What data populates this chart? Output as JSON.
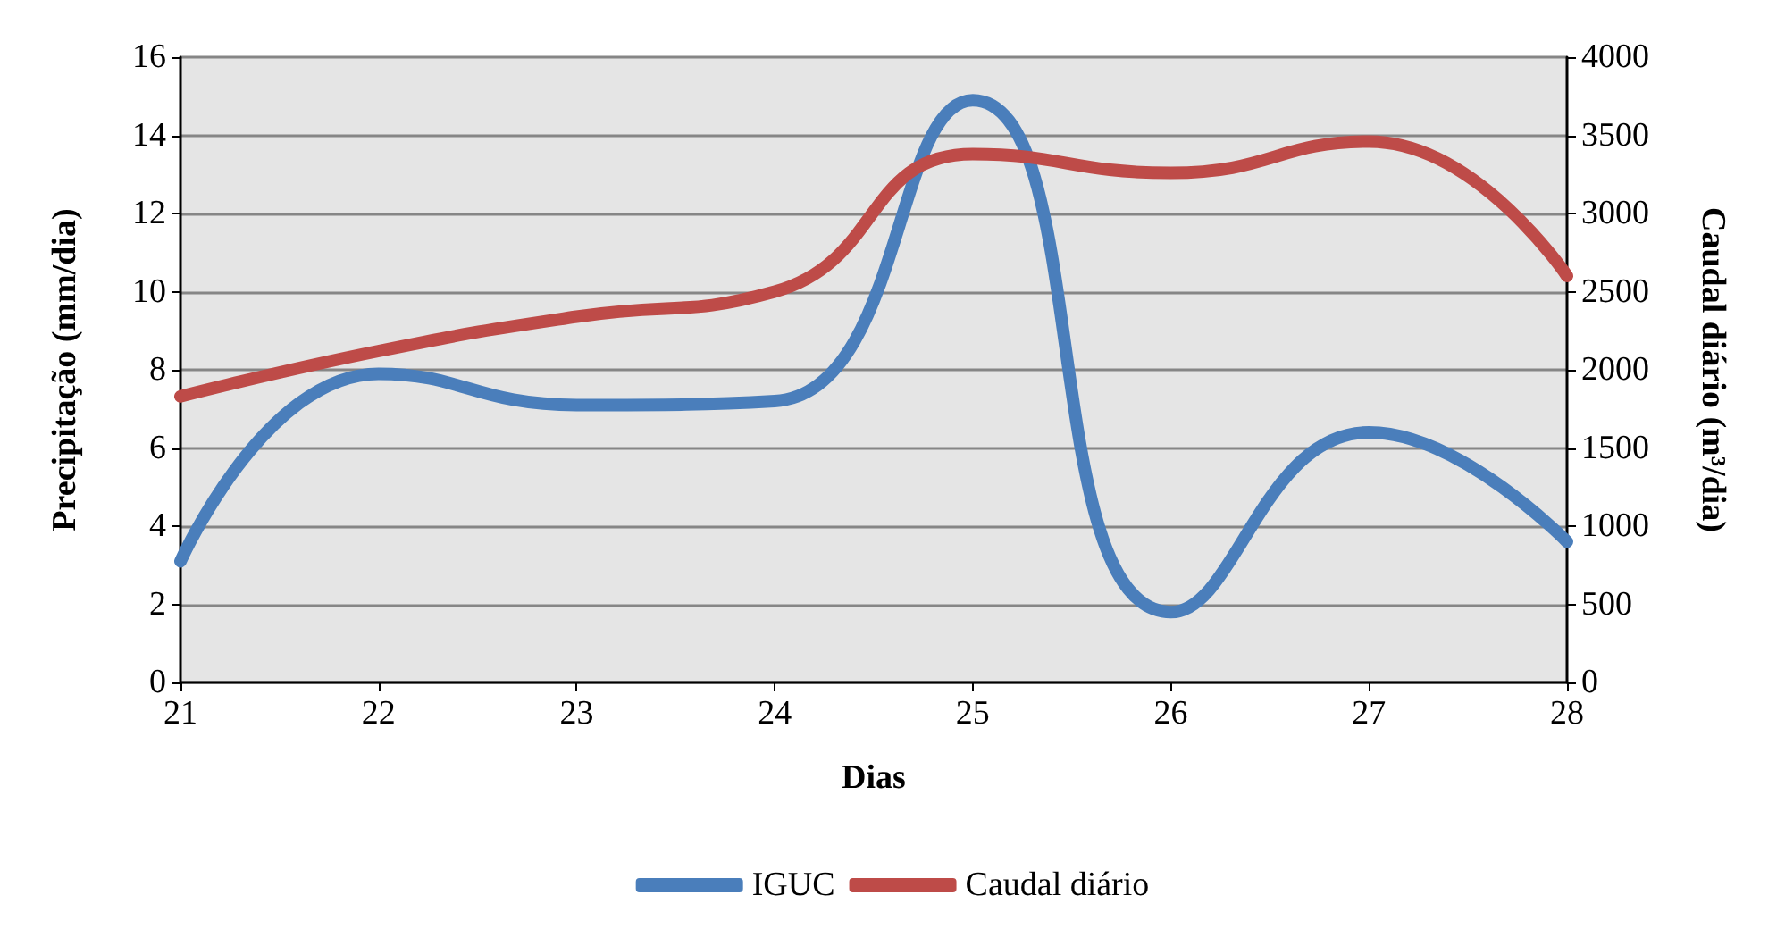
{
  "chart_data": {
    "type": "line",
    "xlabel": "Dias",
    "ylabel": "Precipitação (mm/dia)",
    "y2label": "Caudal diário (m³/dia)",
    "x": [
      21,
      22,
      23,
      24,
      25,
      26,
      27,
      28
    ],
    "xlim": [
      21,
      28
    ],
    "xticks": [
      21,
      22,
      23,
      24,
      25,
      26,
      27,
      28
    ],
    "ylim": [
      0,
      16
    ],
    "yticks": [
      0,
      2,
      4,
      6,
      8,
      10,
      12,
      14,
      16
    ],
    "y2lim": [
      0,
      4000
    ],
    "y2ticks": [
      0,
      500,
      1000,
      1500,
      2000,
      2500,
      3000,
      3500,
      4000
    ],
    "series": [
      {
        "name": "IGUC",
        "color": "#4a7ebb",
        "values": [
          3.1,
          7.9,
          7.1,
          7.2,
          14.9,
          1.8,
          6.4,
          3.6
        ]
      },
      {
        "name": "Caudal diário",
        "color": "#be4b48",
        "axis": "y2",
        "values": [
          1830,
          2120,
          2340,
          2500,
          3380,
          3260,
          3460,
          2600
        ]
      }
    ],
    "grid": "y",
    "legend": "bottom",
    "line_style": "solid"
  }
}
